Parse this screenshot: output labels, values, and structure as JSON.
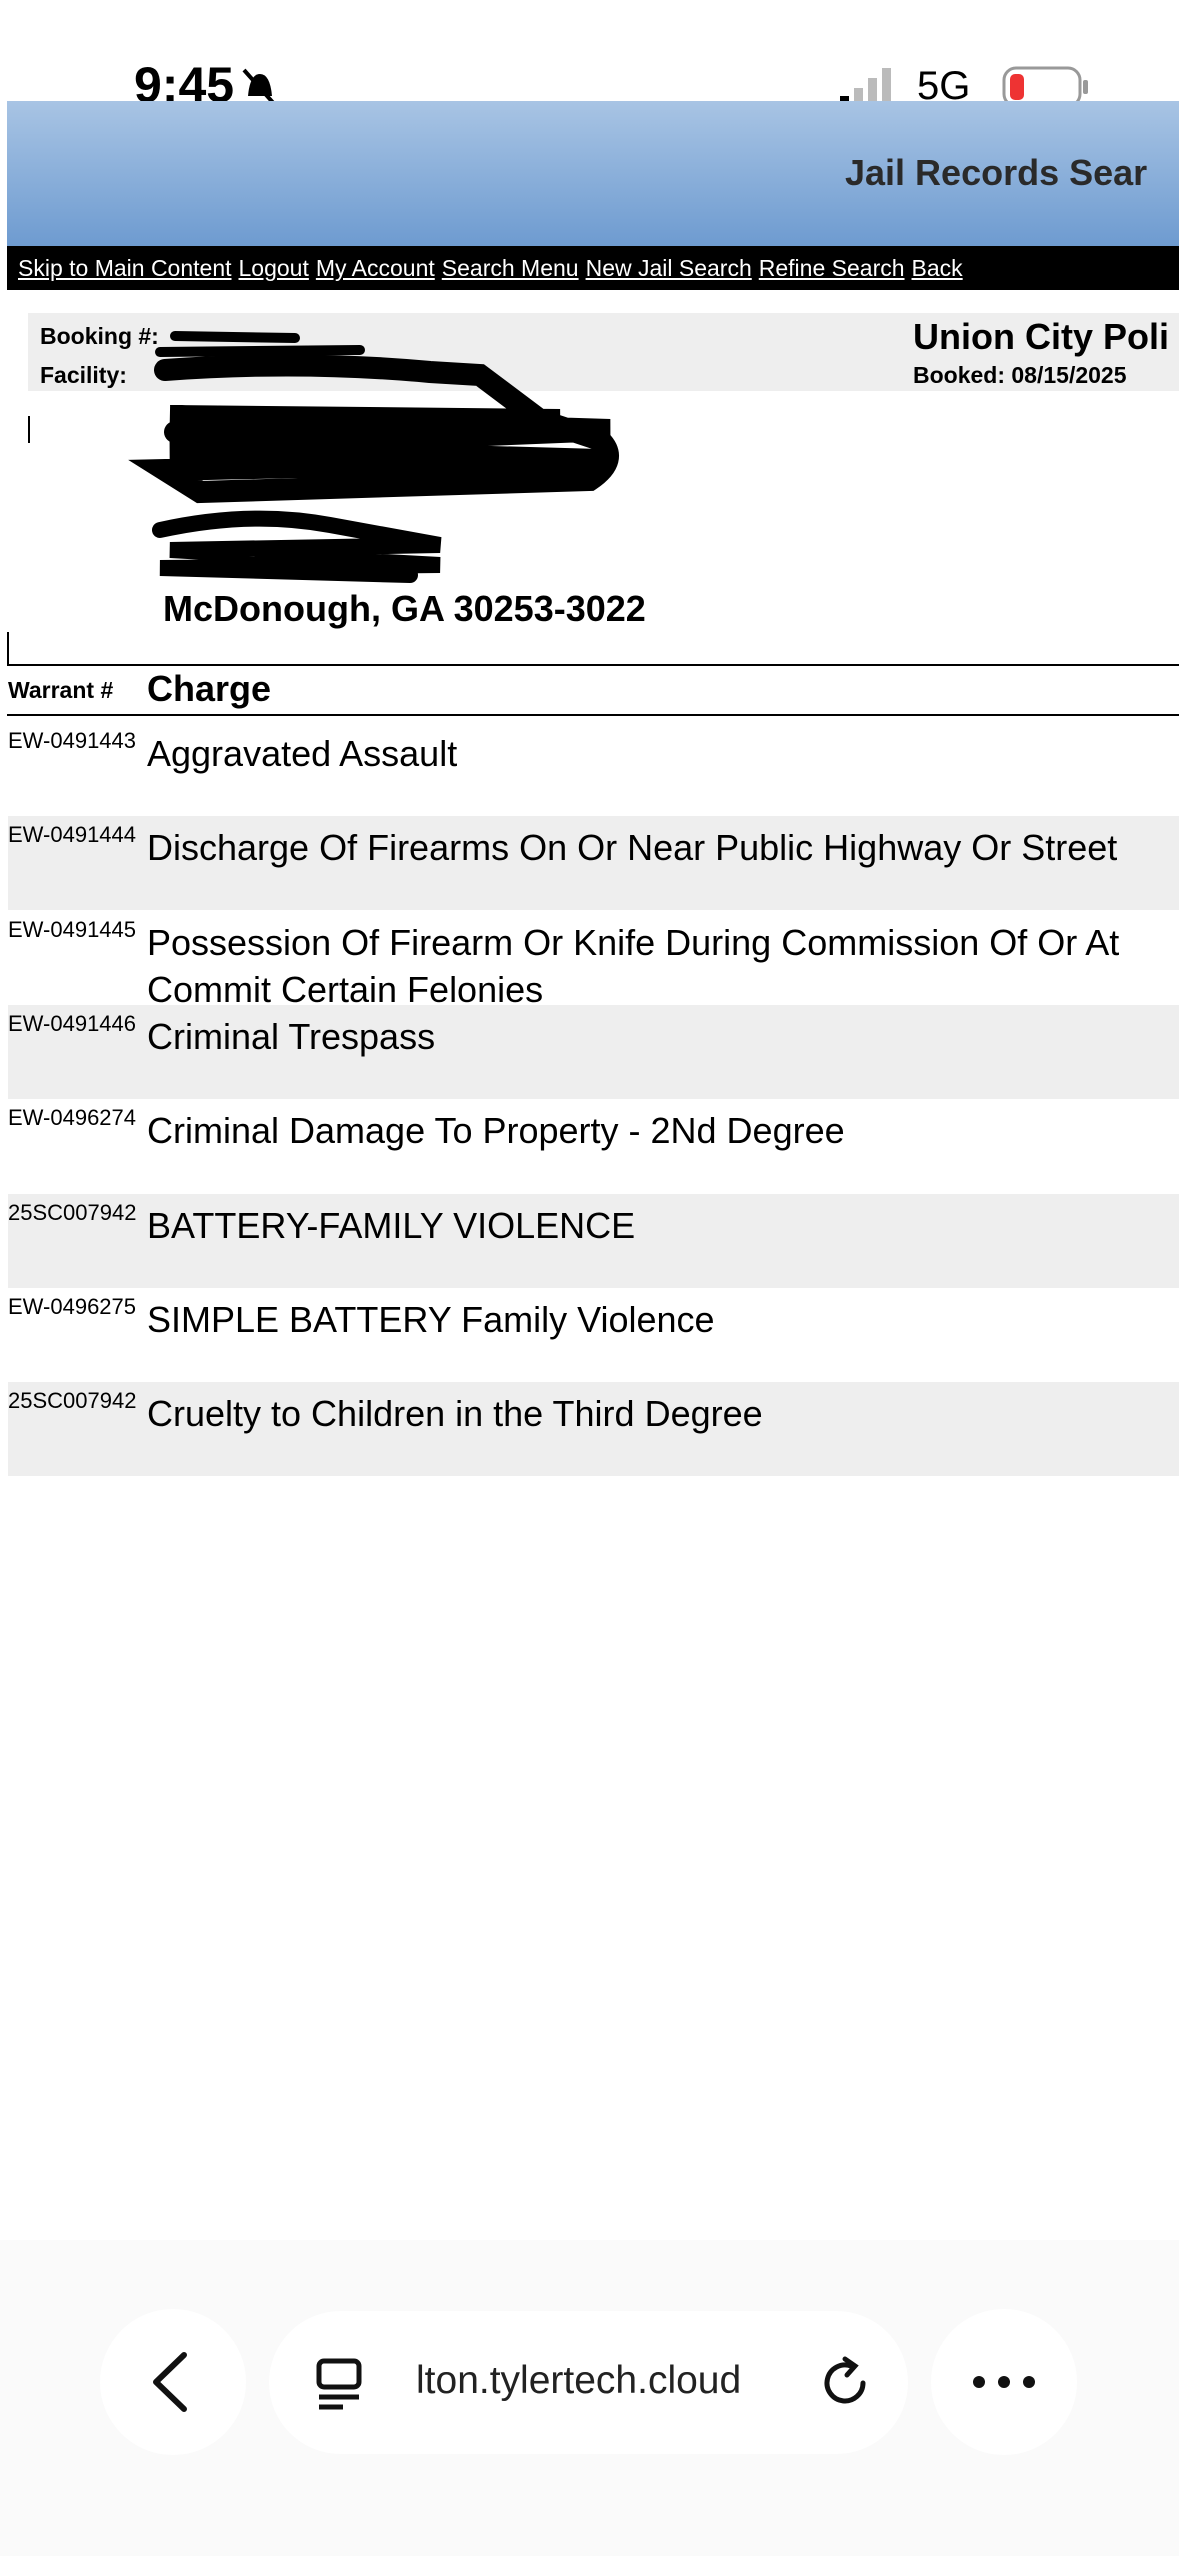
{
  "status_bar": {
    "time": "9:45",
    "network": "5G"
  },
  "header": {
    "title": "Jail Records Sear"
  },
  "nav": [
    "Skip to Main Content",
    "Logout",
    "My Account",
    "Search Menu",
    "New Jail Search",
    "Refine Search",
    "Back"
  ],
  "booking": {
    "booking_label": "Booking #:",
    "facility_label": "Facility:",
    "agency": "Union City Poli",
    "booked": "Booked: 08/15/2025",
    "address": "McDonough, GA 30253-3022"
  },
  "table": {
    "headers": [
      "Warrant #",
      "Charge"
    ],
    "rows": [
      [
        "EW-0491443",
        "Aggravated Assault"
      ],
      [
        "EW-0491444",
        "Discharge Of Firearms On Or Near Public Highway Or Street"
      ],
      [
        "EW-0491445",
        "Possession Of Firearm Or Knife During Commission Of Or At"
      ],
      [
        "EW-0491446",
        "Criminal Trespass"
      ],
      [
        "EW-0496274",
        "Criminal Damage To Property - 2Nd Degree"
      ],
      [
        "25SC007942",
        "BATTERY-FAMILY VIOLENCE"
      ],
      [
        "EW-0496275",
        "SIMPLE BATTERY Family Violence"
      ],
      [
        "25SC007942",
        "Cruelty to Children in the Third Degree"
      ]
    ],
    "continuation": "Commit Certain Felonies"
  },
  "browser": {
    "url": "lton.tylertech.cloud"
  }
}
